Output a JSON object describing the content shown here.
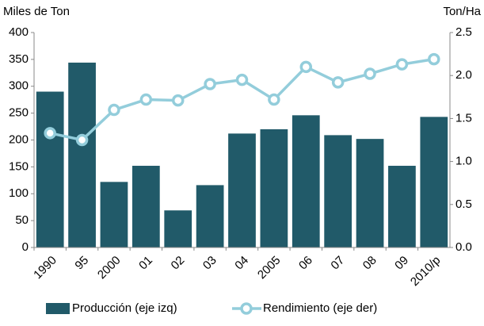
{
  "chart_data": {
    "type": "bar_line",
    "ylabel": "Miles de Ton",
    "y2label": "Ton/Ha",
    "categories": [
      "1990",
      "95",
      "2000",
      "01",
      "02",
      "03",
      "04",
      "2005",
      "06",
      "07",
      "08",
      "09",
      "2010/p"
    ],
    "series": [
      {
        "name": "Producción (eje izq)",
        "type": "bar",
        "color": "#215a69",
        "values": [
          290,
          344,
          122,
          152,
          69,
          116,
          212,
          220,
          246,
          209,
          202,
          152,
          243
        ]
      },
      {
        "name": "Rendimiento (eje der)",
        "type": "line",
        "axis": "y2",
        "color": "#93cddb",
        "values": [
          1.33,
          1.25,
          1.6,
          1.72,
          1.71,
          1.9,
          1.95,
          1.72,
          2.1,
          1.92,
          2.02,
          2.13,
          2.19
        ]
      }
    ],
    "ylim": [
      0,
      400
    ],
    "yticks": [
      0,
      50,
      100,
      150,
      200,
      250,
      300,
      350,
      400
    ],
    "y2lim": [
      0,
      2.5
    ],
    "y2ticks": [
      {
        "value": 0,
        "label": "0.0"
      },
      {
        "value": 0.5,
        "label": "0.5"
      },
      {
        "value": 1,
        "label": "1.0"
      },
      {
        "value": 1.5,
        "label": "1.5"
      },
      {
        "value": 2,
        "label": "2.0"
      },
      {
        "value": 2.5,
        "label": "2.5"
      }
    ],
    "legend": "bottom"
  }
}
